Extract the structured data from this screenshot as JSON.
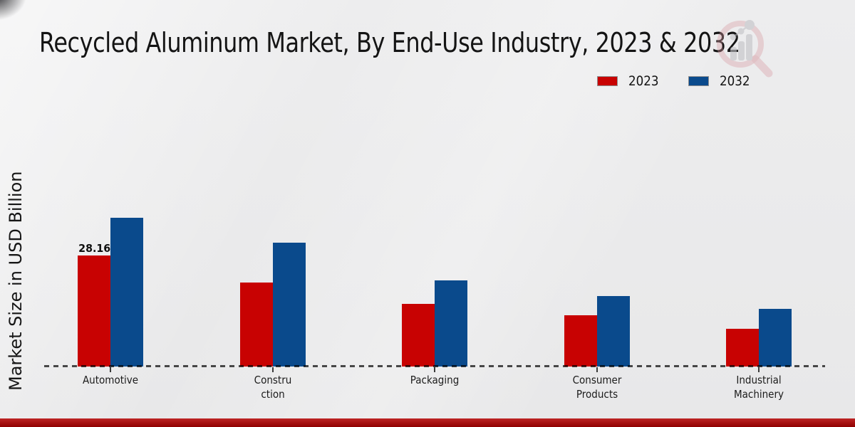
{
  "title": "Recycled Aluminum Market, By End-Use Industry, 2023 & 2032",
  "ylabel": "Market Size in USD Billion",
  "legend": [
    {
      "label": "2023",
      "color": "#c80202"
    },
    {
      "label": "2032",
      "color": "#0a4a8c"
    }
  ],
  "footer": {
    "color": "#b30000"
  },
  "logo": {
    "name": "market-research-magnifier-logo"
  },
  "chart_data": {
    "type": "bar",
    "title": "Recycled Aluminum Market, By End-Use Industry, 2023 & 2032",
    "xlabel": "",
    "ylabel": "Market Size in USD Billion",
    "categories": [
      "Automotive",
      "Construction",
      "Packaging",
      "Consumer Products",
      "Industrial Machinery"
    ],
    "category_label_lines": [
      [
        "Automotive"
      ],
      [
        "Constru",
        "ction"
      ],
      [
        "Packaging"
      ],
      [
        "Consumer",
        "Products"
      ],
      [
        "Industrial",
        "Machinery"
      ]
    ],
    "series": [
      {
        "name": "2023",
        "color": "#c80202",
        "values": [
          28.16,
          21.3,
          15.9,
          13.0,
          9.6
        ]
      },
      {
        "name": "2032",
        "color": "#0a4a8c",
        "values": [
          37.7,
          31.4,
          21.8,
          17.9,
          14.6
        ]
      }
    ],
    "data_labels": [
      {
        "series": "2023",
        "category": "Automotive",
        "text": "28.16"
      }
    ],
    "axis": {
      "y_min": 0,
      "grid": false,
      "baseline_style": "dashed",
      "y_ticks_visible": false
    },
    "legend_position": "upper right"
  }
}
